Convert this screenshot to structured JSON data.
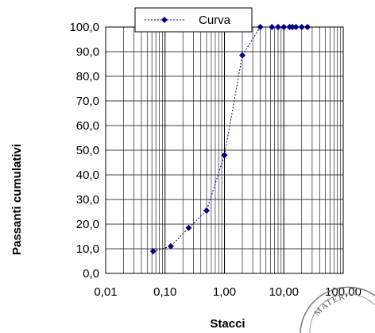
{
  "chart_data": {
    "type": "scatter",
    "xlabel": "Stacci",
    "ylabel": "Passanti cumulativi",
    "xscale": "log",
    "xlim": [
      0.01,
      100
    ],
    "ylim": [
      0,
      100
    ],
    "x_ticks": [
      "0,01",
      "0,10",
      "1,00",
      "10,00",
      "100,00"
    ],
    "y_ticks": [
      "0,0",
      "10,0",
      "20,0",
      "30,0",
      "40,0",
      "50,0",
      "60,0",
      "70,0",
      "80,0",
      "90,0",
      "100,0"
    ],
    "grid": true,
    "legend_position": "top",
    "series": [
      {
        "name": "Curva",
        "color": "#000080",
        "line_style": "dotted",
        "marker": "diamond",
        "x": [
          0.063,
          0.125,
          0.25,
          0.5,
          1.0,
          2.0,
          4.0,
          6.3,
          8.0,
          10.0,
          12.5,
          14.0,
          16.0,
          20.0,
          25.0
        ],
        "y": [
          9.0,
          11.0,
          18.5,
          25.5,
          48.0,
          88.5,
          100.0,
          100.0,
          100.0,
          100.0,
          100.0,
          100.0,
          100.0,
          100.0,
          100.0
        ]
      }
    ]
  },
  "stamp": {
    "text": "MATER",
    "kind": "partial circular stamp at bottom-right corner"
  }
}
